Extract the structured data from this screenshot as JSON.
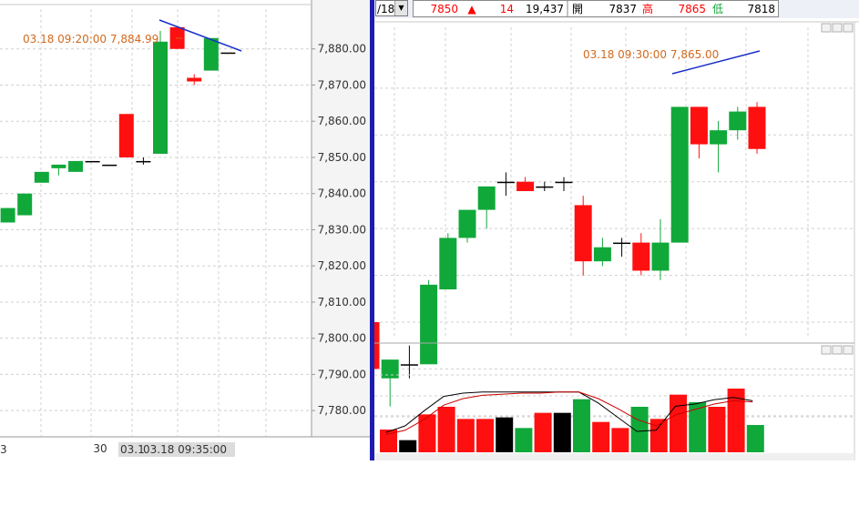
{
  "toolbar": {
    "date_fragment": "/18",
    "price": "7850",
    "change_arrow": "▲",
    "change": "14",
    "volume": "19,437",
    "open_label": "開",
    "open": "7837",
    "high_label": "高",
    "high": "7865",
    "low_label": "低",
    "low": "7818"
  },
  "colors": {
    "up": "#ff1010",
    "down": "#11a83a",
    "flat": "#000000",
    "trendline": "#1a2fc8",
    "annotation": "#d2691e",
    "divider": "#1c1cb0",
    "k_line": "#000000",
    "d_line": "#cc0000"
  },
  "chart_data": [
    {
      "type": "candlestick",
      "panel": "left",
      "ylim": [
        7773,
        7891
      ],
      "y_ticks": [
        "7,780.00",
        "7,790.00",
        "7,800.00",
        "7,810.00",
        "7,820.00",
        "7,830.00",
        "7,840.00",
        "7,850.00",
        "7,860.00",
        "7,870.00",
        "7,880.00"
      ],
      "y_tick_values": [
        7780,
        7790,
        7800,
        7810,
        7820,
        7830,
        7840,
        7850,
        7860,
        7870,
        7880
      ],
      "x_labels": [
        "3",
        "30"
      ],
      "cursor_time": "03.18 09:35:00",
      "cursor_prefix": "03.1",
      "annotation": "03.18 09:20:00  7,884.99",
      "candles": [
        {
          "o": 7830,
          "h": 7832,
          "l": 7821,
          "c": 7821
        },
        {
          "o": 7832,
          "h": 7836,
          "l": 7832,
          "c": 7836
        },
        {
          "o": 7834,
          "h": 7840,
          "l": 7834,
          "c": 7840
        },
        {
          "o": 7843,
          "h": 7846,
          "l": 7843,
          "c": 7846
        },
        {
          "o": 7847,
          "h": 7848,
          "l": 7845,
          "c": 7848
        },
        {
          "o": 7846,
          "h": 7849,
          "l": 7846,
          "c": 7849
        },
        {
          "o": 7849,
          "h": 7849,
          "l": 7849,
          "c": 7849
        },
        {
          "o": 7848,
          "h": 7848,
          "l": 7848,
          "c": 7848
        },
        {
          "o": 7862,
          "h": 7862,
          "l": 7850,
          "c": 7850
        },
        {
          "o": 7849,
          "h": 7850,
          "l": 7848,
          "c": 7849
        },
        {
          "o": 7851,
          "h": 7885,
          "l": 7851,
          "c": 7882
        },
        {
          "o": 7886,
          "h": 7886,
          "l": 7880,
          "c": 7880
        },
        {
          "o": 7872,
          "h": 7873,
          "l": 7870,
          "c": 7871
        },
        {
          "o": 7874,
          "h": 7883,
          "l": 7874,
          "c": 7883
        },
        {
          "o": 7879,
          "h": 7879,
          "l": 7879,
          "c": 7879
        }
      ]
    },
    {
      "type": "candlestick",
      "panel": "right",
      "ylim": [
        7802,
        7893
      ],
      "annotation": "03.18 09:30:00  7,865.00",
      "candles": [
        {
          "o": 7830,
          "h": 7831,
          "l": 7820,
          "c": 7820
        },
        {
          "o": 7818,
          "h": 7822,
          "l": 7812,
          "c": 7822
        },
        {
          "o": 7821,
          "h": 7825,
          "l": 7818,
          "c": 7821
        },
        {
          "o": 7821,
          "h": 7839,
          "l": 7821,
          "c": 7838
        },
        {
          "o": 7837,
          "h": 7849,
          "l": 7837,
          "c": 7848
        },
        {
          "o": 7848,
          "h": 7854,
          "l": 7847,
          "c": 7854
        },
        {
          "o": 7854,
          "h": 7859,
          "l": 7850,
          "c": 7859
        },
        {
          "o": 7860,
          "h": 7862,
          "l": 7857,
          "c": 7860
        },
        {
          "o": 7860,
          "h": 7861,
          "l": 7858,
          "c": 7858
        },
        {
          "o": 7859,
          "h": 7860,
          "l": 7858,
          "c": 7859
        },
        {
          "o": 7860,
          "h": 7861,
          "l": 7858,
          "c": 7860
        },
        {
          "o": 7855,
          "h": 7857,
          "l": 7840,
          "c": 7843
        },
        {
          "o": 7843,
          "h": 7848,
          "l": 7842,
          "c": 7846
        },
        {
          "o": 7847,
          "h": 7848,
          "l": 7844,
          "c": 7847
        },
        {
          "o": 7847,
          "h": 7849,
          "l": 7840,
          "c": 7841
        },
        {
          "o": 7841,
          "h": 7852,
          "l": 7839,
          "c": 7847
        },
        {
          "o": 7847,
          "h": 7876,
          "l": 7847,
          "c": 7876
        },
        {
          "o": 7876,
          "h": 7876,
          "l": 7865,
          "c": 7868
        },
        {
          "o": 7868,
          "h": 7873,
          "l": 7862,
          "c": 7871
        },
        {
          "o": 7871,
          "h": 7876,
          "l": 7869,
          "c": 7875
        },
        {
          "o": 7876,
          "h": 7877,
          "l": 7866,
          "c": 7867
        }
      ]
    },
    {
      "type": "bar",
      "panel": "right-volume",
      "values": [
        15,
        8,
        25,
        30,
        22,
        22,
        23,
        16,
        26,
        26,
        35,
        20,
        16,
        30,
        22,
        38,
        33,
        30,
        42,
        18
      ],
      "bar_colors": [
        "up",
        "flat",
        "up",
        "up",
        "up",
        "up",
        "flat",
        "down",
        "up",
        "flat",
        "down",
        "up",
        "up",
        "down",
        "up",
        "up",
        "down",
        "up",
        "up",
        "down"
      ],
      "k_line": [
        14,
        20,
        34,
        47,
        50,
        51,
        51,
        51,
        51,
        51,
        51,
        41,
        28,
        15,
        16,
        38,
        40,
        44,
        46,
        43
      ],
      "d_line": [
        12,
        16,
        26,
        39,
        45,
        48,
        49,
        50,
        50,
        51,
        51,
        45,
        36,
        26,
        20,
        30,
        35,
        40,
        43,
        42
      ]
    }
  ]
}
